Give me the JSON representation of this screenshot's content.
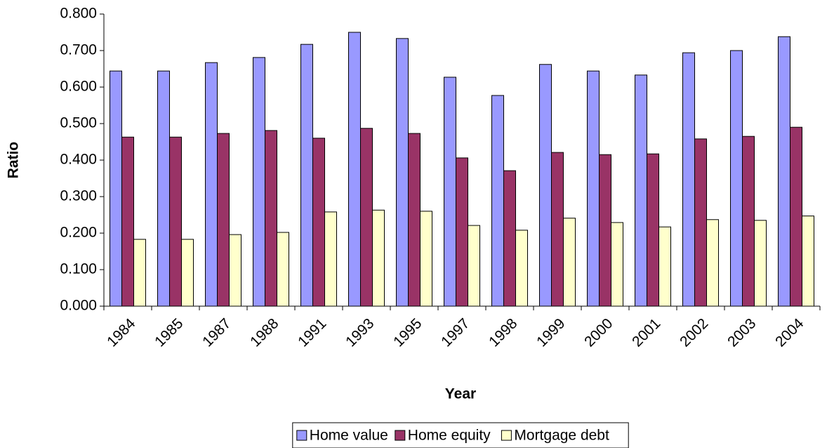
{
  "chart_data": {
    "type": "bar",
    "x_label": "Year",
    "y_label": "Ratio",
    "categories": [
      "1984",
      "1985",
      "1987",
      "1988",
      "1991",
      "1993",
      "1995",
      "1997",
      "1998",
      "1999",
      "2000",
      "2001",
      "2002",
      "2003",
      "2004"
    ],
    "series": [
      {
        "name": "Home value",
        "color": "#9999ff",
        "values": [
          0.644,
          0.644,
          0.667,
          0.681,
          0.717,
          0.75,
          0.733,
          0.627,
          0.577,
          0.662,
          0.644,
          0.633,
          0.694,
          0.7,
          0.738
        ]
      },
      {
        "name": "Home equity",
        "color": "#993366",
        "values": [
          0.463,
          0.463,
          0.473,
          0.481,
          0.46,
          0.487,
          0.473,
          0.406,
          0.371,
          0.421,
          0.415,
          0.417,
          0.458,
          0.465,
          0.49
        ]
      },
      {
        "name": "Mortgage debt",
        "color": "#ffffcc",
        "values": [
          0.183,
          0.183,
          0.196,
          0.202,
          0.258,
          0.263,
          0.26,
          0.221,
          0.208,
          0.241,
          0.229,
          0.217,
          0.237,
          0.235,
          0.247
        ]
      }
    ],
    "ylim": [
      0,
      0.8
    ],
    "yticks": [
      {
        "value": 0,
        "label": "0.000"
      },
      {
        "value": 0.1,
        "label": "0.100"
      },
      {
        "value": 0.2,
        "label": "0.200"
      },
      {
        "value": 0.3,
        "label": "0.300"
      },
      {
        "value": 0.4,
        "label": "0.400"
      },
      {
        "value": 0.5,
        "label": "0.500"
      },
      {
        "value": 0.6,
        "label": "0.600"
      },
      {
        "value": 0.7,
        "label": "0.700"
      },
      {
        "value": 0.8,
        "label": "0.800"
      }
    ],
    "grid": false,
    "legend": "bottom"
  }
}
